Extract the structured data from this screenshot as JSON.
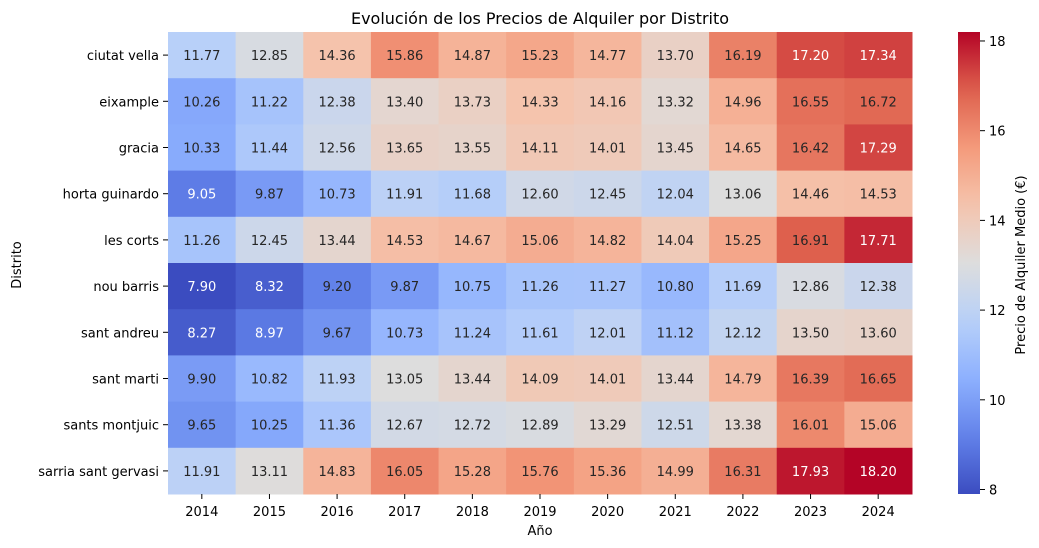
{
  "chart_data": {
    "type": "heatmap",
    "title": "Evolución de los Precios de Alquiler por Distrito",
    "xlabel": "Año",
    "ylabel": "Distrito",
    "colorbar_label": "Precio de Alquiler Medio (€)",
    "colormap": "coolwarm",
    "color_range": [
      7.9,
      18.2
    ],
    "colorbar_ticks": [
      "8",
      "10",
      "12",
      "14",
      "16",
      "18"
    ],
    "colorbar_tick_values": [
      8,
      10,
      12,
      14,
      16,
      18
    ],
    "x": [
      "2014",
      "2015",
      "2016",
      "2017",
      "2018",
      "2019",
      "2020",
      "2021",
      "2022",
      "2023",
      "2024"
    ],
    "y": [
      "ciutat vella",
      "eixample",
      "gracia",
      "horta guinardo",
      "les corts",
      "nou barris",
      "sant andreu",
      "sant marti",
      "sants montjuic",
      "sarria sant gervasi"
    ],
    "values": [
      [
        11.77,
        12.85,
        14.36,
        15.86,
        14.87,
        15.23,
        14.77,
        13.7,
        16.19,
        17.2,
        17.34
      ],
      [
        10.26,
        11.22,
        12.38,
        13.4,
        13.73,
        14.33,
        14.16,
        13.32,
        14.96,
        16.55,
        16.72
      ],
      [
        10.33,
        11.44,
        12.56,
        13.65,
        13.55,
        14.11,
        14.01,
        13.45,
        14.65,
        16.42,
        17.29
      ],
      [
        9.05,
        9.87,
        10.73,
        11.91,
        11.68,
        12.6,
        12.45,
        12.04,
        13.06,
        14.46,
        14.53
      ],
      [
        11.26,
        12.45,
        13.44,
        14.53,
        14.67,
        15.06,
        14.82,
        14.04,
        15.25,
        16.91,
        17.71
      ],
      [
        7.9,
        8.32,
        9.2,
        9.87,
        10.75,
        11.26,
        11.27,
        10.8,
        11.69,
        12.86,
        12.38
      ],
      [
        8.27,
        8.97,
        9.67,
        10.73,
        11.24,
        11.61,
        12.01,
        11.12,
        12.12,
        13.5,
        13.6
      ],
      [
        9.9,
        10.82,
        11.93,
        13.05,
        13.44,
        14.09,
        14.01,
        13.44,
        14.79,
        16.39,
        16.65
      ],
      [
        9.65,
        10.25,
        11.36,
        12.67,
        12.72,
        12.89,
        13.29,
        12.51,
        13.38,
        16.01,
        15.06
      ],
      [
        11.91,
        13.11,
        14.83,
        16.05,
        15.28,
        15.76,
        15.36,
        14.99,
        16.31,
        17.93,
        18.2
      ]
    ]
  }
}
